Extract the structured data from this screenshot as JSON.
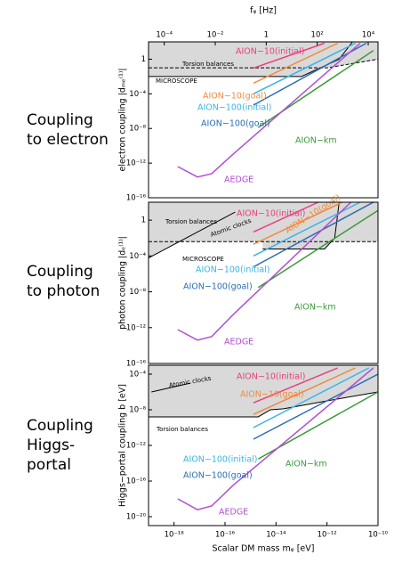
{
  "chart_data": [
    {
      "type": "line",
      "log_x": true,
      "log_y": true,
      "row_label": [
        "Coupling",
        "to electron"
      ],
      "ylabel": "electron coupling |dₘₑ⁽¹⁾|",
      "x2label": "fᵩ [Hz]",
      "x2lim": [
        2.418e-05,
        24180
      ],
      "x2ticks": [
        {
          "value": 0.0001,
          "label": "10⁻⁴"
        },
        {
          "value": 0.01,
          "label": "10⁻²"
        },
        1,
        {
          "value": 100,
          "label": "10²"
        },
        {
          "value": 10000,
          "label": "10⁴"
        }
      ],
      "xlim": [
        1e-19,
        1e-10
      ],
      "ylim": [
        1e-16,
        100
      ],
      "yticks": [
        {
          "value": 1e-16,
          "label": "10⁻¹⁶"
        },
        {
          "value": 1e-12,
          "label": "10⁻¹²"
        },
        {
          "value": 1e-08,
          "label": "10⁻⁸"
        },
        {
          "value": 0.0001,
          "label": "10⁻⁴"
        },
        1
      ],
      "series": [
        {
          "name": "Torsion balances",
          "color": "#000000",
          "dash": true,
          "fill": "#d9d9d9",
          "x": [
            1e-19,
            1e-12,
            1e-10
          ],
          "values": [
            0.1,
            0.1,
            1
          ]
        },
        {
          "name": "MICROSCOPE",
          "color": "#000000",
          "fill": "#d9d9d9",
          "x": [
            1e-19,
            1e-13,
            3e-12,
            1e-11
          ],
          "values": [
            0.01,
            0.01,
            1,
            100
          ]
        },
        {
          "name": "AION−10(initial)",
          "color": "#e8417e",
          "x": [
            1.3e-15,
            8e-13
          ],
          "values": [
            0.093,
            70
          ]
        },
        {
          "name": "AION−10(goal)",
          "color": "#f08a3c",
          "x": [
            1.3e-15,
            2.6e-12
          ],
          "values": [
            0.0017,
            70
          ]
        },
        {
          "name": "AION−100(initial)",
          "color": "#3ab4e6",
          "x": [
            1.3e-15,
            1.3e-11
          ],
          "values": [
            0.0001,
            70
          ]
        },
        {
          "name": "AION−100(goal)",
          "color": "#2a6db5",
          "x": [
            1.3e-15,
            3.5e-11
          ],
          "values": [
            5e-06,
            70
          ]
        },
        {
          "name": "AION−km",
          "color": "#3a9a3a",
          "x": [
            2e-15,
            6.6e-11
          ],
          "values": [
            1.3e-08,
            10
          ]
        },
        {
          "name": "AEDGE",
          "color": "#b04fd0",
          "x": [
            1.4e-18,
            8.3e-18,
            3e-17,
            2e-16,
            2e-11
          ],
          "values": [
            4e-13,
            2.5e-14,
            6e-14,
            1e-11,
            70
          ]
        }
      ]
    },
    {
      "type": "line",
      "log_x": true,
      "log_y": true,
      "row_label": [
        "Coupling",
        "to photon"
      ],
      "ylabel": "photon coupling |dₑ⁽¹⁾|",
      "xlim": [
        1e-19,
        1e-10
      ],
      "ylim": [
        1e-16,
        100
      ],
      "yticks": [
        {
          "value": 1e-16,
          "label": "10⁻¹⁶"
        },
        {
          "value": 1e-12,
          "label": "10⁻¹²"
        },
        {
          "value": 1e-08,
          "label": "10⁻⁸"
        },
        {
          "value": 0.0001,
          "label": "10⁻⁴"
        },
        1
      ],
      "series": [
        {
          "name": "Torsion balances",
          "color": "#000000",
          "dash": true,
          "fill": "#d9d9d9",
          "x": [
            1e-19,
            1e-10
          ],
          "values": [
            0.004,
            0.004
          ]
        },
        {
          "name": "Atomic clocks",
          "color": "#000000",
          "fill": "#d9d9d9",
          "x": [
            1e-19,
            2.5e-16
          ],
          "values": [
            6e-05,
            8
          ]
        },
        {
          "name": "MICROSCOPE",
          "color": "#000000",
          "fill": "#d9d9d9",
          "x": [
            3e-15,
            8e-13,
            2e-12,
            3e-12
          ],
          "values": [
            0.0006,
            0.0006,
            0.01,
            100
          ]
        },
        {
          "name": "AION−10(initial)",
          "color": "#e8417e",
          "x": [
            1.3e-15,
            4.5e-13
          ],
          "values": [
            0.047,
            100
          ]
        },
        {
          "name": "AION−10(goal)",
          "color": "#f08a3c",
          "x": [
            1.3e-15,
            4e-12
          ],
          "values": [
            0.002,
            100
          ]
        },
        {
          "name": "AION−100(initial)",
          "color": "#3ab4e6",
          "x": [
            1.3e-15,
            2e-11
          ],
          "values": [
            0.0001,
            100
          ]
        },
        {
          "name": "AION−100(goal)",
          "color": "#2a6db5",
          "x": [
            1.3e-15,
            6.6e-11
          ],
          "values": [
            6e-06,
            100
          ]
        },
        {
          "name": "AION−km",
          "color": "#3a9a3a",
          "x": [
            2e-15,
            1e-10
          ],
          "values": [
            3e-08,
            12
          ]
        },
        {
          "name": "AEDGE",
          "color": "#b04fd0",
          "x": [
            1.4e-18,
            8.3e-18,
            3e-17,
            2e-16,
            8.7e-12
          ],
          "values": [
            6e-13,
            4e-14,
            1e-13,
            2.5e-11,
            100
          ]
        }
      ]
    },
    {
      "type": "line",
      "log_x": true,
      "log_y": true,
      "row_label": [
        "Coupling",
        "Higgs-",
        "portal"
      ],
      "ylabel": "Higgs−portal coupling b [eV]",
      "xlabel": "Scalar DM mass mᵩ [eV]",
      "xlim": [
        1e-19,
        1e-10
      ],
      "ylim": [
        1e-21,
        0.001
      ],
      "xticks": [
        {
          "value": 1e-18,
          "label": "10⁻¹⁸"
        },
        {
          "value": 1e-16,
          "label": "10⁻¹⁶"
        },
        {
          "value": 1e-14,
          "label": "10⁻¹⁴"
        },
        {
          "value": 1e-12,
          "label": "10⁻¹²"
        },
        {
          "value": 1e-10,
          "label": "10⁻¹⁰"
        }
      ],
      "yticks": [
        {
          "value": 1e-20,
          "label": "10⁻²⁰"
        },
        {
          "value": 1e-16,
          "label": "10⁻¹⁶"
        },
        {
          "value": 1e-12,
          "label": "10⁻¹²"
        },
        {
          "value": 1e-08,
          "label": "10⁻⁸"
        },
        {
          "value": 0.0001,
          "label": "10⁻⁴"
        }
      ],
      "series": [
        {
          "name": "Atomic clocks",
          "color": "#000000",
          "fill": "#d9d9d9",
          "x": [
            1.3e-19,
            4.5e-18
          ],
          "values": [
            1e-06,
            1e-05
          ]
        },
        {
          "name": "Torsion balances",
          "color": "#000000",
          "fill": "#d9d9d9",
          "x": [
            1e-19,
            2e-15,
            6e-15,
            2e-14,
            1e-12,
            1e-10
          ],
          "values": [
            1.6e-09,
            1.6e-09,
            1e-08,
            1.3e-08,
            1e-07,
            1e-06
          ]
        },
        {
          "name": "AION−10(initial)",
          "color": "#e8417e",
          "x": [
            1.3e-15,
            2.6e-12
          ],
          "values": [
            6e-08,
            0.0005
          ]
        },
        {
          "name": "AION−10(goal)",
          "color": "#f08a3c",
          "x": [
            1.3e-15,
            1.3e-11
          ],
          "values": [
            3e-09,
            0.0005
          ]
        },
        {
          "name": "AION−100(initial)",
          "color": "#3ab4e6",
          "x": [
            1.3e-15,
            4.4e-11
          ],
          "values": [
            1e-10,
            0.0005
          ]
        },
        {
          "name": "AION−100(goal)",
          "color": "#2a6db5",
          "x": [
            1.3e-15,
            1e-10
          ],
          "values": [
            5e-12,
            0.0001
          ]
        },
        {
          "name": "AION−km",
          "color": "#3a9a3a",
          "x": [
            2e-15,
            1e-10
          ],
          "values": [
            3e-14,
            1e-06
          ]
        },
        {
          "name": "AEDGE",
          "color": "#b04fd0",
          "x": [
            1.4e-18,
            8.3e-18,
            3e-17,
            2e-16,
            6.6e-11
          ],
          "values": [
            1e-18,
            6e-20,
            1.6e-19,
            3e-17,
            0.0005
          ]
        }
      ]
    }
  ]
}
